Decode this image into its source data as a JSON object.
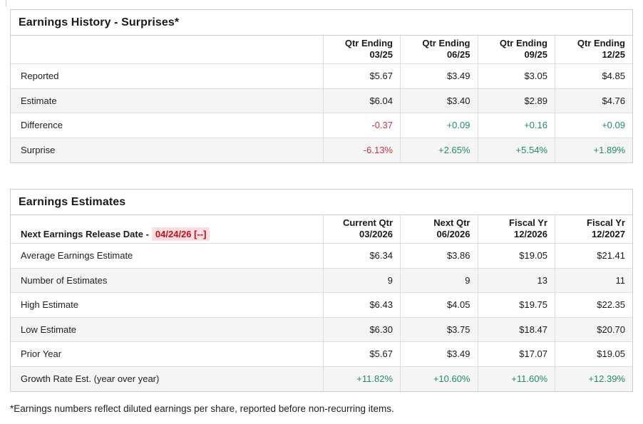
{
  "colors": {
    "accent_positive": "#218a70",
    "accent_negative": "#cc3344",
    "release_date_red": "#c50d1d",
    "release_date_bg": "#fcdee0",
    "stripe": "#f5f5f5",
    "border_outer": "#cccccc",
    "border_inner": "#dddddd"
  },
  "history": {
    "title": "Earnings History - Surprises*",
    "columns": [
      "Qtr Ending\n03/25",
      "Qtr Ending\n06/25",
      "Qtr Ending\n09/25",
      "Qtr Ending\n12/25"
    ],
    "rows": [
      {
        "label": "Reported",
        "values": [
          "$5.67",
          "$3.49",
          "$3.05",
          "$4.85"
        ]
      },
      {
        "label": "Estimate",
        "values": [
          "$6.04",
          "$3.40",
          "$2.89",
          "$4.76"
        ]
      },
      {
        "label": "Difference",
        "values": [
          "-0.37",
          "+0.09",
          "+0.16",
          "+0.09"
        ]
      },
      {
        "label": "Surprise",
        "values": [
          "-6.13%",
          "+2.65%",
          "+5.54%",
          "+1.89%"
        ]
      }
    ]
  },
  "estimates": {
    "title": "Earnings Estimates",
    "release": {
      "label": "Next Earnings Release Date -",
      "date": "04/24/26 [--]"
    },
    "columns": [
      "Current Qtr\n03/2026",
      "Next Qtr\n06/2026",
      "Fiscal Yr\n12/2026",
      "Fiscal Yr\n12/2027"
    ],
    "rows": [
      {
        "label": "Average Earnings Estimate",
        "values": [
          "$6.34",
          "$3.86",
          "$19.05",
          "$21.41"
        ]
      },
      {
        "label": "Number of Estimates",
        "values": [
          "9",
          "9",
          "13",
          "11"
        ]
      },
      {
        "label": "High Estimate",
        "values": [
          "$6.43",
          "$4.05",
          "$19.75",
          "$22.35"
        ]
      },
      {
        "label": "Low Estimate",
        "values": [
          "$6.30",
          "$3.75",
          "$18.47",
          "$20.70"
        ]
      },
      {
        "label": "Prior Year",
        "values": [
          "$5.67",
          "$3.49",
          "$17.07",
          "$19.05"
        ]
      },
      {
        "label": "Growth Rate Est. (year over year)",
        "values": [
          "+11.82%",
          "+10.60%",
          "+11.60%",
          "+12.39%"
        ]
      }
    ]
  },
  "footnote": "*Earnings numbers reflect diluted earnings per share, reported before non-recurring items."
}
